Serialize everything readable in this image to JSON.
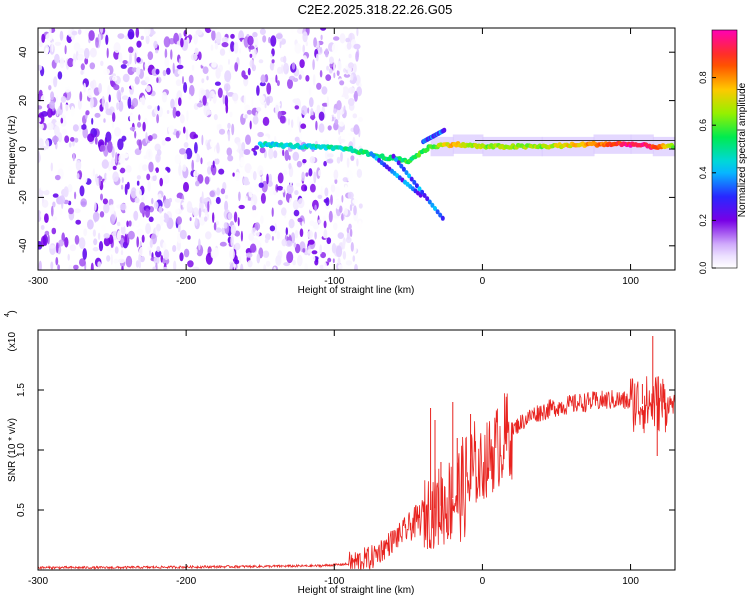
{
  "title": "C2E2.2025.318.22.26.G05",
  "chart_data": [
    {
      "type": "heatmap",
      "panel": "spectrogram",
      "xlabel": "Height of straight line (km)",
      "ylabel": "Frequency (Hz)",
      "xlim": [
        -300,
        130
      ],
      "ylim": [
        -50,
        50
      ],
      "x_ticks": [
        -300,
        -200,
        -100,
        0,
        100
      ],
      "y_ticks": [
        -40,
        -20,
        0,
        20,
        40
      ],
      "colorbar": {
        "label": "Normalized spectral amplitude",
        "range": [
          0,
          1
        ],
        "ticks": [
          "0.0",
          "0.2",
          "0.4",
          "0.6",
          "0.8"
        ]
      },
      "carrier": [
        {
          "x": -150,
          "freq": 2,
          "amp": 0.45
        },
        {
          "x": -120,
          "freq": 1,
          "amp": 0.45
        },
        {
          "x": -90,
          "freq": 0,
          "amp": 0.5
        },
        {
          "x": -70,
          "freq": -3,
          "amp": 0.55
        },
        {
          "x": -50,
          "freq": -5,
          "amp": 0.55
        },
        {
          "x": -35,
          "freq": 1,
          "amp": 0.6
        },
        {
          "x": -20,
          "freq": 2,
          "amp": 0.75
        },
        {
          "x": 0,
          "freq": 1,
          "amp": 0.65
        },
        {
          "x": 40,
          "freq": 1,
          "amp": 0.65
        },
        {
          "x": 75,
          "freq": 2,
          "amp": 0.8
        },
        {
          "x": 100,
          "freq": 2,
          "amp": 0.95
        },
        {
          "x": 115,
          "freq": 1,
          "amp": 0.9
        },
        {
          "x": 130,
          "freq": 1,
          "amp": 0.6
        }
      ],
      "noise_region_x": [
        -300,
        -90
      ]
    },
    {
      "type": "line",
      "panel": "snr",
      "xlabel": "Height of straight line (km)",
      "ylabel": "SNR (10 * v/v)",
      "scale_note": "(x10",
      "scale_exp": "4",
      "xlim": [
        -300,
        130
      ],
      "ylim": [
        0,
        2.0
      ],
      "x_ticks": [
        -300,
        -200,
        -100,
        0,
        100
      ],
      "y_ticks": [
        "0.5",
        "1.0",
        "1.5"
      ],
      "color": "#e8231f",
      "series": [
        {
          "values": [
            {
              "x": -300,
              "y": 0.02
            },
            {
              "x": -250,
              "y": 0.02
            },
            {
              "x": -200,
              "y": 0.025
            },
            {
              "x": -150,
              "y": 0.03
            },
            {
              "x": -110,
              "y": 0.035
            },
            {
              "x": -90,
              "y": 0.05
            },
            {
              "x": -75,
              "y": 0.1
            },
            {
              "x": -60,
              "y": 0.25
            },
            {
              "x": -45,
              "y": 0.4
            },
            {
              "x": -35,
              "y": 0.5
            },
            {
              "x": -25,
              "y": 0.55
            },
            {
              "x": -15,
              "y": 0.65
            },
            {
              "x": -5,
              "y": 0.8
            },
            {
              "x": 5,
              "y": 0.95
            },
            {
              "x": 15,
              "y": 1.1
            },
            {
              "x": 25,
              "y": 1.22
            },
            {
              "x": 35,
              "y": 1.3
            },
            {
              "x": 50,
              "y": 1.36
            },
            {
              "x": 70,
              "y": 1.4
            },
            {
              "x": 90,
              "y": 1.42
            },
            {
              "x": 110,
              "y": 1.38
            },
            {
              "x": 120,
              "y": 1.4
            },
            {
              "x": 130,
              "y": 1.38
            }
          ]
        }
      ],
      "spikes": [
        {
          "x": -35,
          "y": 1.35
        },
        {
          "x": -32,
          "y": 1.25
        },
        {
          "x": -28,
          "y": 0.9
        },
        {
          "x": -20,
          "y": 1.4
        },
        {
          "x": -17,
          "y": 1.1
        },
        {
          "x": -8,
          "y": 1.3
        },
        {
          "x": 108,
          "y": 1.55
        },
        {
          "x": 115,
          "y": 1.95
        },
        {
          "x": 118,
          "y": 0.95
        },
        {
          "x": 122,
          "y": 1.5
        }
      ]
    }
  ]
}
